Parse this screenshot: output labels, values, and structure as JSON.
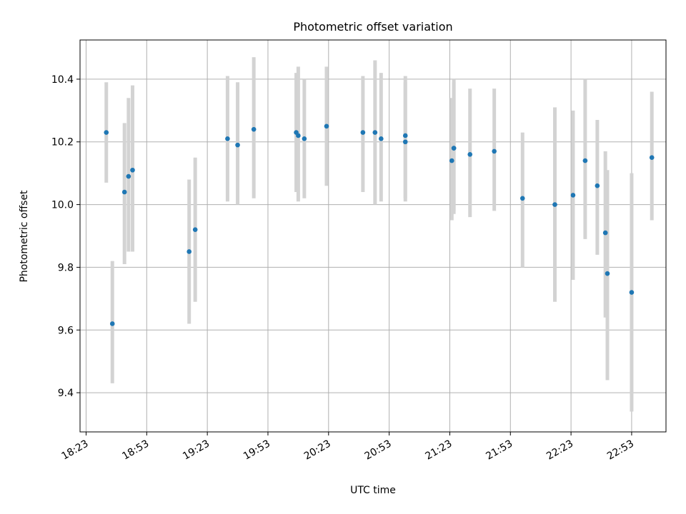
{
  "chart_data": {
    "type": "scatter",
    "title": "Photometric offset variation",
    "xlabel": "UTC time",
    "ylabel": "Photometric offset",
    "xlim": [
      "18:20",
      "23:10"
    ],
    "ylim": [
      9.275,
      10.525
    ],
    "x_ticks": [
      "18:23",
      "18:53",
      "19:23",
      "19:53",
      "20:23",
      "20:53",
      "21:23",
      "21:53",
      "22:23",
      "22:53"
    ],
    "y_ticks": [
      "9.4",
      "9.6",
      "9.8",
      "10.0",
      "10.2",
      "10.4"
    ],
    "grid": true,
    "legend": "none",
    "point_color": "#1f77b4",
    "errorbar_color": "#d3d3d3",
    "points": [
      {
        "x": "18:33",
        "y": 10.23,
        "ylow": 10.07,
        "yhigh": 10.39
      },
      {
        "x": "18:36",
        "y": 9.62,
        "ylow": 9.43,
        "yhigh": 9.82
      },
      {
        "x": "18:42",
        "y": 10.04,
        "ylow": 9.81,
        "yhigh": 10.26
      },
      {
        "x": "18:44",
        "y": 10.09,
        "ylow": 9.85,
        "yhigh": 10.34
      },
      {
        "x": "18:46",
        "y": 10.11,
        "ylow": 9.85,
        "yhigh": 10.38
      },
      {
        "x": "19:14",
        "y": 9.85,
        "ylow": 9.62,
        "yhigh": 10.08
      },
      {
        "x": "19:17",
        "y": 9.92,
        "ylow": 9.69,
        "yhigh": 10.15
      },
      {
        "x": "19:33",
        "y": 10.21,
        "ylow": 10.01,
        "yhigh": 10.41
      },
      {
        "x": "19:38",
        "y": 10.19,
        "ylow": 10.0,
        "yhigh": 10.39
      },
      {
        "x": "19:46",
        "y": 10.24,
        "ylow": 10.02,
        "yhigh": 10.47
      },
      {
        "x": "20:07",
        "y": 10.23,
        "ylow": 10.04,
        "yhigh": 10.42
      },
      {
        "x": "20:08",
        "y": 10.22,
        "ylow": 10.01,
        "yhigh": 10.44
      },
      {
        "x": "20:11",
        "y": 10.21,
        "ylow": 10.02,
        "yhigh": 10.4
      },
      {
        "x": "20:22",
        "y": 10.25,
        "ylow": 10.06,
        "yhigh": 10.44
      },
      {
        "x": "20:40",
        "y": 10.23,
        "ylow": 10.04,
        "yhigh": 10.41
      },
      {
        "x": "20:46",
        "y": 10.23,
        "ylow": 10.0,
        "yhigh": 10.46
      },
      {
        "x": "20:49",
        "y": 10.21,
        "ylow": 10.01,
        "yhigh": 10.42
      },
      {
        "x": "21:01",
        "y": 10.22,
        "ylow": 10.02,
        "yhigh": 10.41
      },
      {
        "x": "21:01",
        "y": 10.2,
        "ylow": 10.01,
        "yhigh": 10.39
      },
      {
        "x": "21:24",
        "y": 10.14,
        "ylow": 9.95,
        "yhigh": 10.34
      },
      {
        "x": "21:25",
        "y": 10.18,
        "ylow": 9.97,
        "yhigh": 10.39
      },
      {
        "x": "21:25",
        "y": 10.18,
        "ylow": 9.98,
        "yhigh": 10.4
      },
      {
        "x": "21:33",
        "y": 10.16,
        "ylow": 9.96,
        "yhigh": 10.37
      },
      {
        "x": "21:45",
        "y": 10.17,
        "ylow": 9.98,
        "yhigh": 10.37
      },
      {
        "x": "21:59",
        "y": 10.02,
        "ylow": 9.8,
        "yhigh": 10.23
      },
      {
        "x": "22:15",
        "y": 10.0,
        "ylow": 9.69,
        "yhigh": 10.31
      },
      {
        "x": "22:24",
        "y": 10.03,
        "ylow": 9.76,
        "yhigh": 10.3
      },
      {
        "x": "22:30",
        "y": 10.14,
        "ylow": 9.89,
        "yhigh": 10.4
      },
      {
        "x": "22:36",
        "y": 10.06,
        "ylow": 9.84,
        "yhigh": 10.27
      },
      {
        "x": "22:40",
        "y": 9.91,
        "ylow": 9.64,
        "yhigh": 10.17
      },
      {
        "x": "22:41",
        "y": 9.78,
        "ylow": 9.44,
        "yhigh": 10.11
      },
      {
        "x": "22:53",
        "y": 9.72,
        "ylow": 9.34,
        "yhigh": 10.1
      },
      {
        "x": "23:03",
        "y": 10.15,
        "ylow": 9.95,
        "yhigh": 10.36
      }
    ]
  }
}
